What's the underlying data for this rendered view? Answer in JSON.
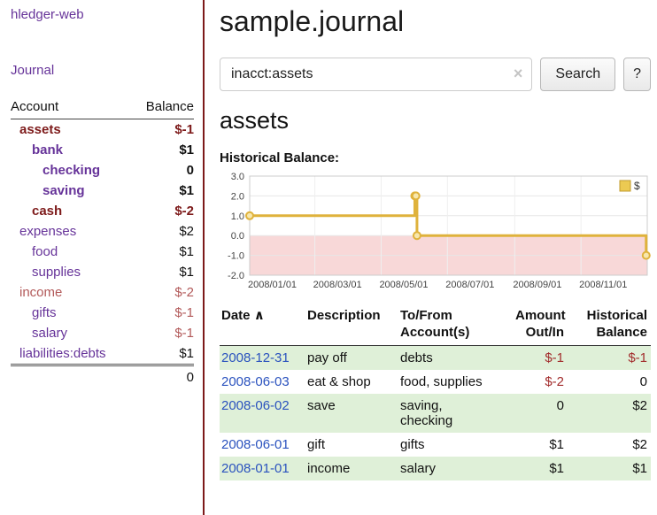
{
  "colors": {
    "purple": "#663399",
    "negative": "#7d1a1a",
    "negative_light": "#b25959",
    "register_negative": "#a22c2c",
    "link_blue": "#2a52be",
    "row_green": "#dff0d8",
    "chart_gold": "#dfb23c",
    "chart_marker_fill": "#f7e7ad",
    "chart_negative_fill": "#f8d8d8",
    "divider": "#7d1a1a"
  },
  "app": {
    "title": "hledger-web",
    "nav_journal": "Journal"
  },
  "sidebar": {
    "col_account": "Account",
    "col_balance": "Balance",
    "accounts": [
      {
        "name": "assets",
        "balance": "$-1",
        "indent": 1,
        "bold": true,
        "name_color": "negative",
        "balance_color": "negative"
      },
      {
        "name": "bank",
        "balance": "$1",
        "indent": 2,
        "bold": true,
        "name_color": "purple"
      },
      {
        "name": "checking",
        "balance": "0",
        "indent": 3,
        "bold": true,
        "name_color": "purple"
      },
      {
        "name": "saving",
        "balance": "$1",
        "indent": 3,
        "bold": true,
        "name_color": "purple"
      },
      {
        "name": "cash",
        "balance": "$-2",
        "indent": 2,
        "bold": true,
        "name_color": "negative",
        "balance_color": "negative"
      },
      {
        "name": "expenses",
        "balance": "$2",
        "indent": 1,
        "bold": false,
        "name_color": "purple"
      },
      {
        "name": "food",
        "balance": "$1",
        "indent": 2,
        "bold": false,
        "name_color": "purple"
      },
      {
        "name": "supplies",
        "balance": "$1",
        "indent": 2,
        "bold": false,
        "name_color": "purple"
      },
      {
        "name": "income",
        "balance": "$-2",
        "indent": 1,
        "bold": false,
        "name_color": "negative_light",
        "balance_color": "negative_light"
      },
      {
        "name": "gifts",
        "balance": "$-1",
        "indent": 2,
        "bold": false,
        "name_color": "purple",
        "balance_color": "negative_light"
      },
      {
        "name": "salary",
        "balance": "$-1",
        "indent": 2,
        "bold": false,
        "name_color": "purple",
        "balance_color": "negative_light"
      },
      {
        "name": "liabilities:debts",
        "balance": "$1",
        "indent": 1,
        "bold": false,
        "name_color": "purple"
      }
    ],
    "total": "0"
  },
  "main": {
    "title": "sample.journal",
    "search": {
      "value": "inacct:assets",
      "clear_icon": "×",
      "button_label": "Search",
      "help_label": "?"
    },
    "account_heading": "assets",
    "chart_label": "Historical Balance:"
  },
  "chart_data": {
    "type": "line",
    "title": "Historical Balance of assets",
    "step": true,
    "ylim": [
      -2,
      3
    ],
    "yticks": [
      3.0,
      2.0,
      1.0,
      0.0,
      -1.0,
      -2.0
    ],
    "xticks": [
      "2008/01/01",
      "2008/03/01",
      "2008/05/01",
      "2008/07/01",
      "2008/09/01",
      "2008/11/01"
    ],
    "legend_position": "top-right",
    "grid": true,
    "series": [
      {
        "name": "$",
        "color": "#dfb23c",
        "points": [
          [
            "2008-01-01",
            1
          ],
          [
            "2008-06-01",
            2
          ],
          [
            "2008-06-02",
            2
          ],
          [
            "2008-06-03",
            0
          ],
          [
            "2008-12-31",
            -1
          ]
        ]
      }
    ]
  },
  "register": {
    "headers": [
      "Date",
      "Description",
      "To/From Account(s)",
      "Amount Out/In",
      "Historical Balance"
    ],
    "sort_icon": "∧",
    "rows": [
      {
        "date": "2008-12-31",
        "description": "pay off",
        "accounts": "debts",
        "amount": "$-1",
        "amount_negative": true,
        "balance": "$-1",
        "balance_negative": true,
        "highlight": true
      },
      {
        "date": "2008-06-03",
        "description": "eat & shop",
        "accounts": "food, supplies",
        "amount": "$-2",
        "amount_negative": true,
        "balance": "0",
        "balance_negative": false,
        "highlight": false
      },
      {
        "date": "2008-06-02",
        "description": "save",
        "accounts": "saving,\nchecking",
        "amount": "0",
        "amount_negative": false,
        "balance": "$2",
        "balance_negative": false,
        "highlight": true
      },
      {
        "date": "2008-06-01",
        "description": "gift",
        "accounts": "gifts",
        "amount": "$1",
        "amount_negative": false,
        "balance": "$2",
        "balance_negative": false,
        "highlight": false
      },
      {
        "date": "2008-01-01",
        "description": "income",
        "accounts": "salary",
        "amount": "$1",
        "amount_negative": false,
        "balance": "$1",
        "balance_negative": false,
        "highlight": true
      }
    ]
  }
}
